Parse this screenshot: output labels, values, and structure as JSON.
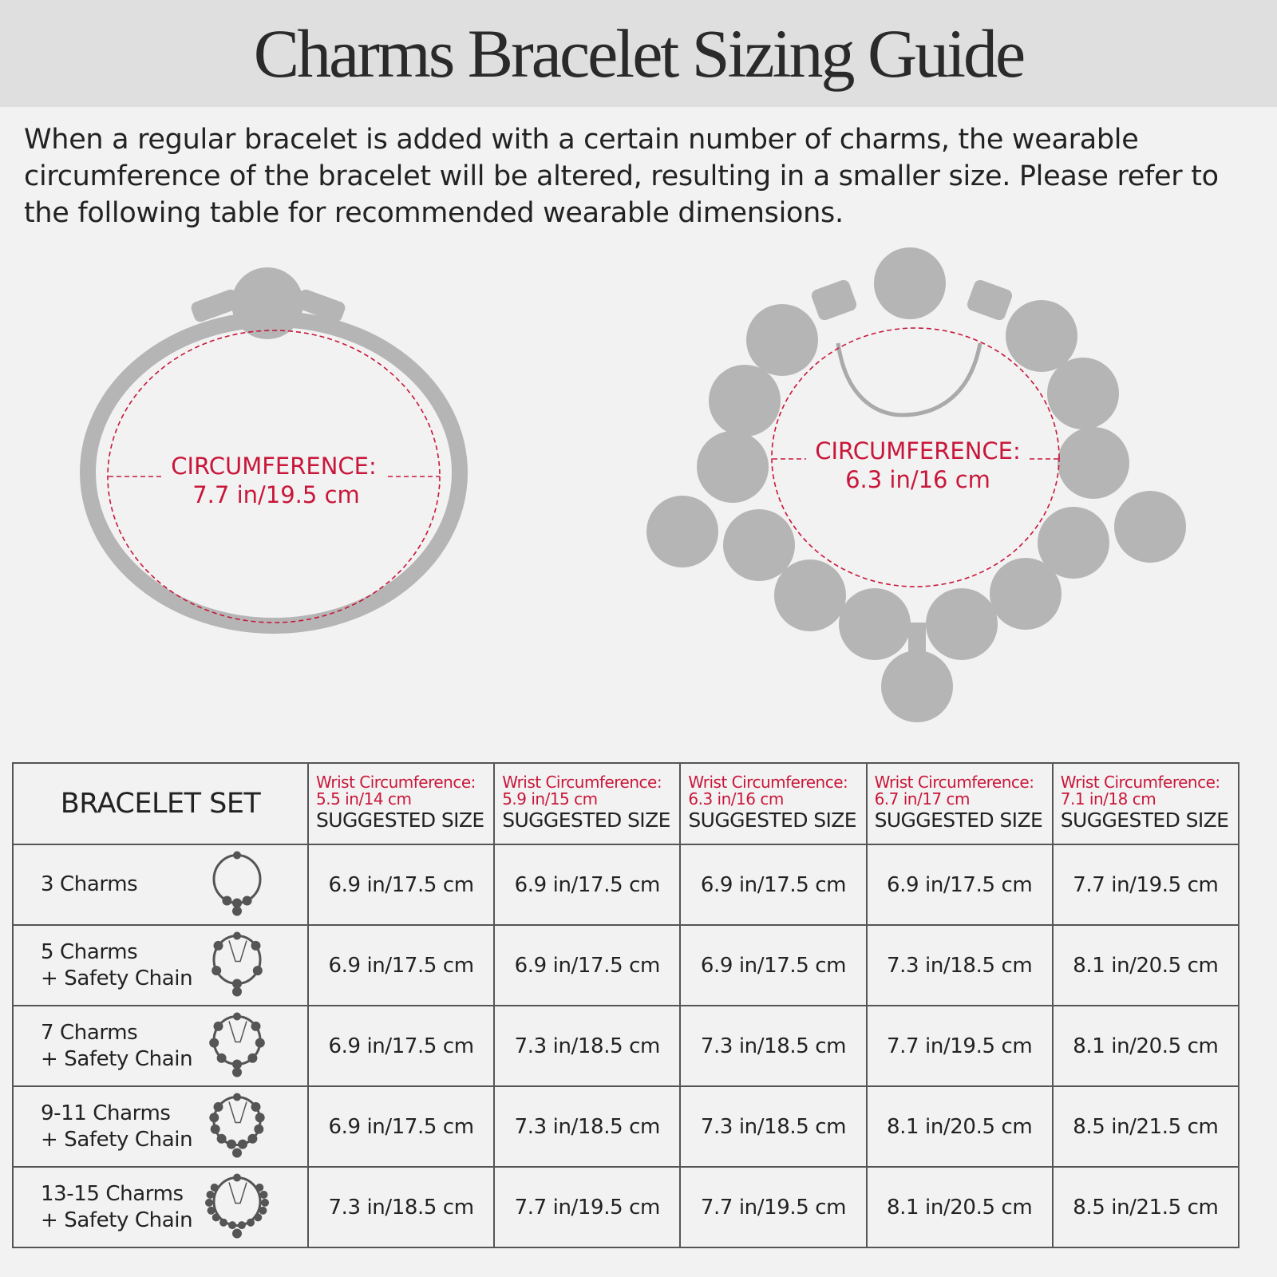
{
  "title": "Charms Bracelet Sizing Guide",
  "intro": "When a regular bracelet is added with a certain number of charms, the wearable circumference of the bracelet will be altered, resulting in a smaller size. Please refer to the following table for recommended wearable dimensions.",
  "illustrations": {
    "plain": {
      "label": "CIRCUMFERENCE:",
      "value": "7.7 in/19.5 cm"
    },
    "charmed": {
      "label": "CIRCUMFERENCE:",
      "value": "6.3 in/16 cm"
    }
  },
  "colors": {
    "accent": "#c8173a",
    "bracelet_gray": "#b5b5b5",
    "title_band": "#e0dfdf"
  },
  "table": {
    "set_header": "BRACELET SET",
    "columns": [
      {
        "wrist_label": "Wrist Circumference:",
        "wrist_value": "5.5 in/14 cm",
        "suggested": "SUGGESTED SIZE"
      },
      {
        "wrist_label": "Wrist Circumference:",
        "wrist_value": "5.9 in/15 cm",
        "suggested": "SUGGESTED SIZE"
      },
      {
        "wrist_label": "Wrist Circumference:",
        "wrist_value": "6.3 in/16 cm",
        "suggested": "SUGGESTED SIZE"
      },
      {
        "wrist_label": "Wrist Circumference:",
        "wrist_value": "6.7 in/17 cm",
        "suggested": "SUGGESTED SIZE"
      },
      {
        "wrist_label": "Wrist Circumference:",
        "wrist_value": "7.1 in/18 cm",
        "suggested": "SUGGESTED SIZE"
      }
    ],
    "rows": [
      {
        "name": "3 Charms",
        "extra": "",
        "icon": "bracelet-3-charms-icon",
        "sizes": [
          "6.9 in/17.5 cm",
          "6.9 in/17.5 cm",
          "6.9 in/17.5 cm",
          "6.9 in/17.5 cm",
          "7.7 in/19.5 cm"
        ]
      },
      {
        "name": "5 Charms",
        "extra": "+ Safety Chain",
        "icon": "bracelet-5-charms-icon",
        "sizes": [
          "6.9 in/17.5 cm",
          "6.9 in/17.5 cm",
          "6.9 in/17.5 cm",
          "7.3 in/18.5 cm",
          "8.1 in/20.5 cm"
        ]
      },
      {
        "name": "7 Charms",
        "extra": "+ Safety Chain",
        "icon": "bracelet-7-charms-icon",
        "sizes": [
          "6.9 in/17.5 cm",
          "7.3 in/18.5 cm",
          "7.3 in/18.5 cm",
          "7.7 in/19.5 cm",
          "8.1 in/20.5 cm"
        ]
      },
      {
        "name": "9-11 Charms",
        "extra": "+ Safety Chain",
        "icon": "bracelet-9-11-charms-icon",
        "sizes": [
          "6.9 in/17.5 cm",
          "7.3 in/18.5 cm",
          "7.3 in/18.5 cm",
          "8.1 in/20.5 cm",
          "8.5 in/21.5 cm"
        ]
      },
      {
        "name": "13-15 Charms",
        "extra": "+ Safety Chain",
        "icon": "bracelet-13-15-charms-icon",
        "sizes": [
          "7.3 in/18.5 cm",
          "7.7 in/19.5 cm",
          "7.7 in/19.5 cm",
          "8.1 in/20.5 cm",
          "8.5 in/21.5 cm"
        ]
      }
    ]
  }
}
